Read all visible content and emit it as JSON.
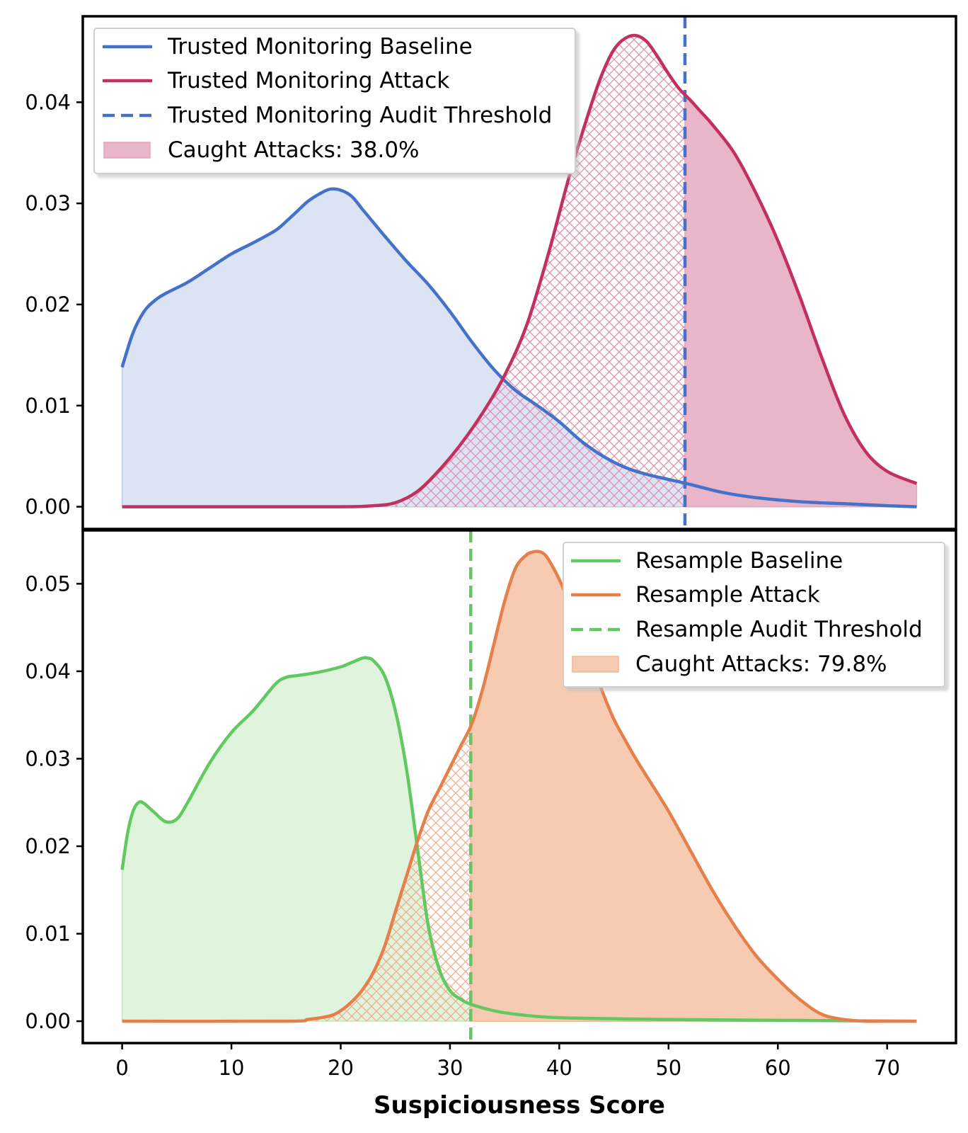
{
  "colors": {
    "tm_baseline": "#4472c9",
    "tm_attack": "#c2305f",
    "tm_fill": "#e9b5c9",
    "rs_baseline": "#62c962",
    "rs_attack": "#e6804a",
    "rs_fill": "#f6cbb1"
  },
  "chart_data": [
    {
      "type": "area",
      "panel": "top",
      "xlabel": "",
      "ylabel": "",
      "xlim": [
        -3.6,
        76.3
      ],
      "ylim": [
        -0.0022,
        0.0485
      ],
      "yticks": [
        0.0,
        0.01,
        0.02,
        0.03,
        0.04
      ],
      "ytick_labels": [
        "0.00",
        "0.01",
        "0.02",
        "0.03",
        "0.04"
      ],
      "threshold": 51.5,
      "legend_position": "upper-left",
      "legend": [
        "Trusted Monitoring Baseline",
        "Trusted Monitoring Attack",
        "Trusted Monitoring Audit Threshold",
        "Caught Attacks: 38.0%"
      ],
      "series": [
        {
          "name": "Trusted Monitoring Baseline",
          "x": [
            0,
            1,
            2,
            3,
            4,
            6,
            8,
            10,
            12,
            14,
            15,
            16,
            17,
            18,
            19,
            20,
            21,
            22,
            23,
            24,
            26,
            28,
            30,
            32,
            34,
            36,
            38,
            40,
            42,
            44,
            46,
            48,
            50,
            52,
            55,
            58,
            62,
            66,
            70,
            72.7
          ],
          "y": [
            0.0138,
            0.0172,
            0.0193,
            0.0204,
            0.0211,
            0.0222,
            0.0236,
            0.025,
            0.0261,
            0.0273,
            0.0282,
            0.0292,
            0.0302,
            0.0309,
            0.0314,
            0.0313,
            0.0307,
            0.0294,
            0.0281,
            0.0268,
            0.0243,
            0.022,
            0.0193,
            0.0163,
            0.0136,
            0.0115,
            0.01,
            0.0084,
            0.0065,
            0.005,
            0.0039,
            0.0032,
            0.0027,
            0.0022,
            0.0014,
            0.0009,
            0.0005,
            0.0003,
            0.0001,
            0.0
          ]
        },
        {
          "name": "Trusted Monitoring Attack",
          "x": [
            0,
            10,
            20,
            23,
            25,
            27,
            29,
            31,
            33,
            35,
            37,
            39,
            41,
            43,
            44,
            45,
            46,
            47,
            48,
            49,
            50,
            51,
            52,
            53,
            54,
            56,
            58,
            60,
            62,
            64,
            66,
            68,
            70,
            72.7
          ],
          "y": [
            0.0,
            0.0,
            0.0,
            0.0001,
            0.0004,
            0.0015,
            0.0036,
            0.0062,
            0.0093,
            0.013,
            0.0179,
            0.025,
            0.033,
            0.04,
            0.043,
            0.0452,
            0.0463,
            0.0466,
            0.046,
            0.0445,
            0.0428,
            0.0413,
            0.0402,
            0.039,
            0.0378,
            0.035,
            0.031,
            0.0263,
            0.0208,
            0.0148,
            0.0093,
            0.0055,
            0.0035,
            0.0023
          ]
        }
      ]
    },
    {
      "type": "area",
      "panel": "bottom",
      "xlabel": "Suspiciousness Score",
      "ylabel": "",
      "xlim": [
        -3.6,
        76.3
      ],
      "ylim": [
        -0.0025,
        0.0561
      ],
      "xticks": [
        0,
        10,
        20,
        30,
        40,
        50,
        60,
        70
      ],
      "xtick_labels": [
        "0",
        "10",
        "20",
        "30",
        "40",
        "50",
        "60",
        "70"
      ],
      "yticks": [
        0.0,
        0.01,
        0.02,
        0.03,
        0.04,
        0.05
      ],
      "ytick_labels": [
        "0.00",
        "0.01",
        "0.02",
        "0.03",
        "0.04",
        "0.05"
      ],
      "threshold": 31.9,
      "legend_position": "upper-right",
      "legend": [
        "Resample Baseline",
        "Resample Attack",
        "Resample Audit Threshold",
        "Caught Attacks: 79.8%"
      ],
      "series": [
        {
          "name": "Resample Baseline",
          "x": [
            0,
            0.5,
            1,
            1.5,
            2,
            3,
            4,
            5,
            6,
            8,
            10,
            12,
            14,
            15,
            16,
            18,
            20,
            21,
            22,
            22.5,
            23,
            24,
            25,
            26,
            27,
            28,
            29,
            30,
            31,
            32,
            34,
            36,
            40,
            50,
            60,
            72.7
          ],
          "y": [
            0.0173,
            0.0215,
            0.024,
            0.025,
            0.0249,
            0.0238,
            0.0228,
            0.0231,
            0.025,
            0.0295,
            0.033,
            0.0355,
            0.0385,
            0.0393,
            0.0395,
            0.0399,
            0.0405,
            0.041,
            0.0415,
            0.0415,
            0.0412,
            0.0395,
            0.0355,
            0.029,
            0.02,
            0.011,
            0.006,
            0.0035,
            0.0025,
            0.0019,
            0.0012,
            0.0008,
            0.0004,
            0.0002,
            0.0001,
            0.0
          ]
        },
        {
          "name": "Resample Attack",
          "x": [
            0,
            15,
            17,
            19,
            20,
            21,
            22,
            23,
            24,
            25,
            26,
            27,
            28,
            29,
            30,
            31,
            32,
            33,
            34,
            35,
            36,
            37,
            37.5,
            38,
            38.5,
            39,
            40,
            41,
            42,
            43,
            44,
            45,
            46,
            47,
            48,
            50,
            52,
            54,
            56,
            58,
            60,
            62,
            64,
            66,
            68,
            70,
            72.7
          ],
          "y": [
            0.0,
            0.0,
            0.0002,
            0.0006,
            0.0012,
            0.0022,
            0.0036,
            0.0056,
            0.0085,
            0.0125,
            0.0165,
            0.0205,
            0.024,
            0.0265,
            0.029,
            0.0315,
            0.034,
            0.038,
            0.043,
            0.048,
            0.0518,
            0.0533,
            0.0536,
            0.0537,
            0.0535,
            0.0528,
            0.0505,
            0.0475,
            0.0442,
            0.0408,
            0.0375,
            0.0345,
            0.0322,
            0.03,
            0.028,
            0.024,
            0.0195,
            0.015,
            0.011,
            0.0075,
            0.0048,
            0.0025,
            0.0008,
            0.0002,
            0.0,
            0.0,
            0.0
          ]
        }
      ]
    }
  ]
}
